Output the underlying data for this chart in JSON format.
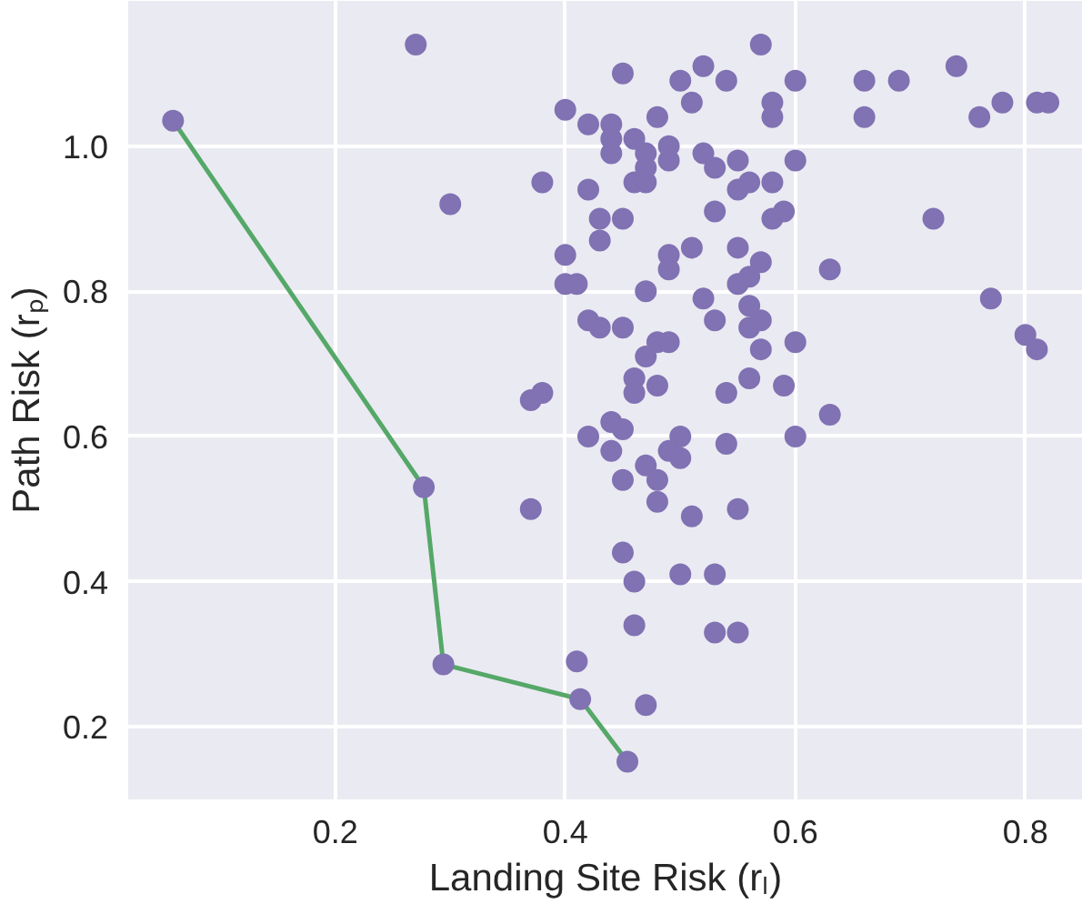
{
  "chart_data": {
    "type": "scatter",
    "xlabel": "Landing Site Risk (rₗ)",
    "ylabel": "Path Risk (rₚ)",
    "xlim": [
      0.02,
      0.85
    ],
    "ylim": [
      0.1,
      1.2
    ],
    "xticks": [
      0.2,
      0.4,
      0.6,
      0.8
    ],
    "yticks": [
      0.2,
      0.4,
      0.6,
      0.8,
      {
        "value": 1.0,
        "label": "1.0"
      }
    ],
    "grid": true,
    "marker": "circle",
    "series": [
      {
        "type": "line",
        "color": "#55a868",
        "marker": "none",
        "x": [
          0.059,
          0.277,
          0.294,
          0.413,
          0.454
        ],
        "values": [
          1.035,
          0.53,
          0.286,
          0.238,
          0.152
        ]
      },
      {
        "color": "#8172b3",
        "x": [
          0.059,
          0.277,
          0.294,
          0.413,
          0.454,
          0.27,
          0.3,
          0.45,
          0.52,
          0.54,
          0.5,
          0.51,
          0.57,
          0.6,
          0.58,
          0.58,
          0.4,
          0.42,
          0.44,
          0.44,
          0.44,
          0.46,
          0.48,
          0.47,
          0.49,
          0.49,
          0.47,
          0.46,
          0.47,
          0.38,
          0.42,
          0.52,
          0.53,
          0.55,
          0.56,
          0.55,
          0.58,
          0.6,
          0.53,
          0.58,
          0.59,
          0.43,
          0.45,
          0.43,
          0.4,
          0.49,
          0.51,
          0.49,
          0.55,
          0.57,
          0.56,
          0.55,
          0.4,
          0.41,
          0.47,
          0.52,
          0.53,
          0.56,
          0.57,
          0.56,
          0.42,
          0.43,
          0.45,
          0.48,
          0.49,
          0.47,
          0.57,
          0.6,
          0.46,
          0.48,
          0.56,
          0.59,
          0.46,
          0.38,
          0.37,
          0.54,
          0.42,
          0.44,
          0.45,
          0.44,
          0.5,
          0.49,
          0.5,
          0.54,
          0.6,
          0.45,
          0.47,
          0.48,
          0.48,
          0.51,
          0.55,
          0.37,
          0.45,
          0.46,
          0.5,
          0.53,
          0.46,
          0.53,
          0.55,
          0.41,
          0.47,
          0.66,
          0.69,
          0.74,
          0.66,
          0.76,
          0.78,
          0.81,
          0.82,
          0.72,
          0.63,
          0.77,
          0.8,
          0.81,
          0.63
        ],
        "values": [
          1.035,
          0.53,
          0.286,
          0.238,
          0.152,
          1.14,
          0.92,
          1.1,
          1.11,
          1.09,
          1.09,
          1.06,
          1.14,
          1.09,
          1.06,
          1.04,
          1.05,
          1.03,
          1.03,
          1.01,
          0.99,
          1.01,
          1.04,
          0.99,
          1.0,
          0.98,
          0.97,
          0.95,
          0.95,
          0.95,
          0.94,
          0.99,
          0.97,
          0.98,
          0.95,
          0.94,
          0.95,
          0.98,
          0.91,
          0.9,
          0.91,
          0.9,
          0.9,
          0.87,
          0.85,
          0.85,
          0.86,
          0.83,
          0.86,
          0.84,
          0.82,
          0.81,
          0.81,
          0.81,
          0.8,
          0.79,
          0.76,
          0.78,
          0.76,
          0.75,
          0.76,
          0.75,
          0.75,
          0.73,
          0.73,
          0.71,
          0.72,
          0.73,
          0.68,
          0.67,
          0.68,
          0.67,
          0.66,
          0.66,
          0.65,
          0.66,
          0.6,
          0.62,
          0.61,
          0.58,
          0.6,
          0.58,
          0.57,
          0.59,
          0.6,
          0.54,
          0.56,
          0.54,
          0.51,
          0.49,
          0.5,
          0.5,
          0.44,
          0.4,
          0.41,
          0.41,
          0.34,
          0.33,
          0.33,
          0.29,
          0.23,
          1.09,
          1.09,
          1.11,
          1.04,
          1.04,
          1.06,
          1.06,
          1.06,
          0.9,
          0.83,
          0.79,
          0.74,
          0.72,
          0.63
        ]
      }
    ]
  }
}
